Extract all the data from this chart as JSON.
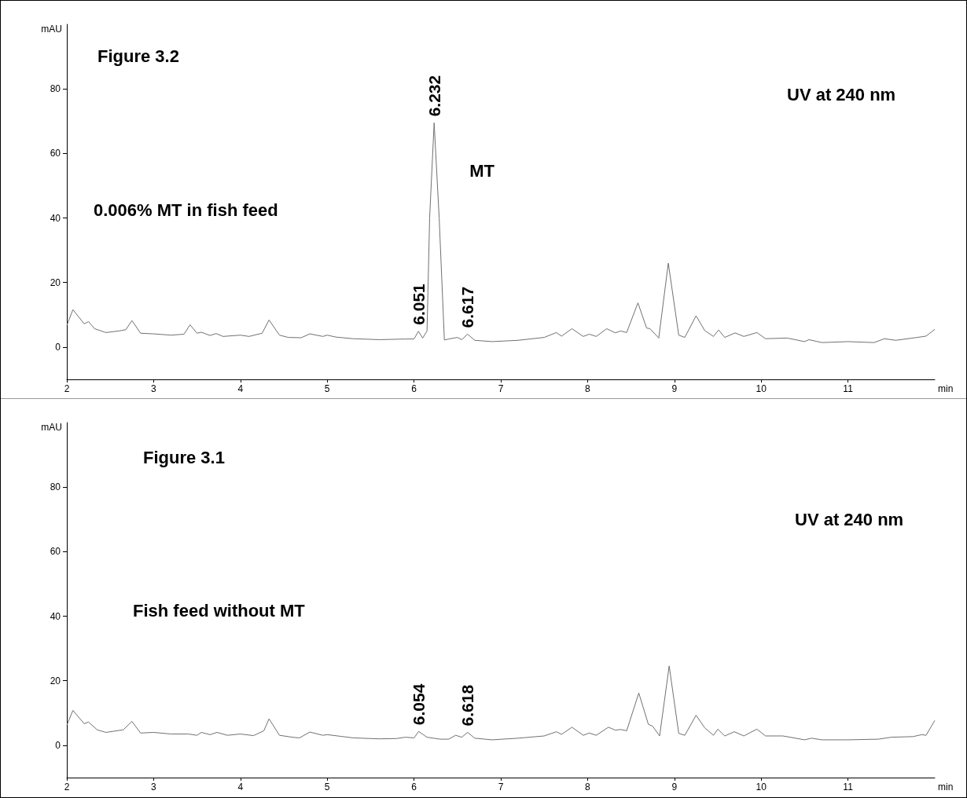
{
  "chart_data": [
    {
      "type": "line",
      "title": "Figure 3.2",
      "xlabel": "min",
      "ylabel": "mAU",
      "color": "#707070",
      "marker": "none",
      "line_style": "solid",
      "x": [
        2.0,
        2.07,
        2.2,
        2.25,
        2.32,
        2.45,
        2.6,
        2.68,
        2.75,
        2.85,
        3.0,
        3.2,
        3.35,
        3.42,
        3.5,
        3.55,
        3.65,
        3.72,
        3.8,
        4.0,
        4.1,
        4.25,
        4.33,
        4.45,
        4.55,
        4.7,
        4.8,
        4.95,
        5.0,
        5.1,
        5.3,
        5.6,
        5.9,
        6.0,
        6.051,
        6.1,
        6.15,
        6.18,
        6.232,
        6.29,
        6.35,
        6.4,
        6.5,
        6.55,
        6.617,
        6.7,
        6.9,
        7.2,
        7.5,
        7.64,
        7.7,
        7.82,
        7.95,
        8.02,
        8.1,
        8.22,
        8.32,
        8.38,
        8.45,
        8.58,
        8.68,
        8.72,
        8.82,
        8.93,
        9.05,
        9.12,
        9.25,
        9.35,
        9.45,
        9.51,
        9.58,
        9.7,
        9.8,
        9.95,
        10.05,
        10.3,
        10.5,
        10.55,
        10.7,
        11.0,
        11.3,
        11.42,
        11.55,
        11.8,
        11.9,
        12.0
      ],
      "values": [
        6.7,
        11.6,
        7.2,
        7.9,
        5.7,
        4.5,
        5,
        5.4,
        8.2,
        4.3,
        4.1,
        3.7,
        4,
        6.9,
        4.3,
        4.6,
        3.6,
        4.2,
        3.3,
        3.7,
        3.3,
        4.3,
        8.4,
        3.7,
        3,
        2.9,
        4.1,
        3.3,
        3.7,
        3.1,
        2.6,
        2.3,
        2.5,
        2.5,
        4.9,
        2.8,
        5,
        40,
        69.5,
        40,
        2.2,
        2.5,
        3,
        2.3,
        4,
        2.1,
        1.7,
        2.1,
        3,
        4.5,
        3.4,
        5.7,
        3.3,
        4,
        3.3,
        5.7,
        4.4,
        5,
        4.5,
        13.7,
        5.9,
        5.7,
        2.8,
        26,
        3.7,
        3,
        9.7,
        5.1,
        3.3,
        5.3,
        3,
        4.4,
        3.3,
        4.5,
        2.6,
        2.8,
        1.7,
        2.3,
        1.4,
        1.7,
        1.4,
        2.6,
        2.1,
        3,
        3.4,
        5.5
      ],
      "xlim": [
        2,
        12
      ],
      "ylim": [
        -10,
        100
      ],
      "xticks": [
        2,
        3,
        4,
        5,
        6,
        7,
        8,
        9,
        10,
        11
      ],
      "yticks": [
        0,
        20,
        40,
        60,
        80
      ],
      "annotations": [
        "0.006% MT in fish feed",
        "UV at 240 nm",
        {
          "text": "MT",
          "x": 6.232,
          "y": 45
        },
        {
          "text": "6.051",
          "x": 6.051,
          "y": 4.9
        },
        {
          "text": "6.232",
          "x": 6.232,
          "y": 69.5
        },
        {
          "text": "6.617",
          "x": 6.617,
          "y": 4
        }
      ]
    },
    {
      "type": "line",
      "title": "Figure 3.1",
      "xlabel": "min",
      "ylabel": "mAU",
      "color": "#707070",
      "marker": "none",
      "line_style": "solid",
      "x": [
        2.0,
        2.07,
        2.2,
        2.25,
        2.35,
        2.45,
        2.65,
        2.75,
        2.85,
        3.0,
        3.2,
        3.4,
        3.5,
        3.55,
        3.65,
        3.73,
        3.85,
        4.0,
        4.15,
        4.27,
        4.33,
        4.45,
        4.6,
        4.68,
        4.8,
        4.95,
        5.0,
        5.15,
        5.3,
        5.6,
        5.8,
        5.9,
        6.0,
        6.054,
        6.15,
        6.3,
        6.4,
        6.48,
        6.55,
        6.618,
        6.7,
        6.9,
        7.2,
        7.5,
        7.64,
        7.7,
        7.82,
        7.95,
        8.02,
        8.1,
        8.24,
        8.32,
        8.38,
        8.45,
        8.59,
        8.7,
        8.75,
        8.83,
        8.94,
        9.05,
        9.12,
        9.25,
        9.35,
        9.45,
        9.5,
        9.58,
        9.69,
        9.8,
        9.95,
        10.05,
        10.25,
        10.5,
        10.58,
        10.7,
        11.0,
        11.35,
        11.5,
        11.75,
        11.85,
        11.9,
        12.0
      ],
      "values": [
        6.2,
        10.8,
        6.7,
        7.2,
        4.8,
        4,
        4.8,
        7.4,
        3.8,
        4,
        3.5,
        3.5,
        3.1,
        4,
        3.3,
        4,
        3.1,
        3.5,
        3,
        4.5,
        8.2,
        3.1,
        2.5,
        2.3,
        4.1,
        3.1,
        3.3,
        2.8,
        2.3,
        2,
        2.1,
        2.5,
        2.3,
        4.3,
        2.5,
        1.9,
        1.9,
        3.1,
        2.5,
        4,
        2.2,
        1.7,
        2.2,
        2.9,
        4.2,
        3.4,
        5.6,
        3.1,
        3.8,
        3.1,
        5.6,
        4.7,
        4.9,
        4.5,
        16.2,
        6.5,
        5.9,
        2.9,
        24.6,
        3.7,
        3.1,
        9.3,
        5.4,
        3.1,
        5,
        2.9,
        4.2,
        2.9,
        5,
        2.9,
        2.9,
        1.7,
        2.2,
        1.7,
        1.7,
        1.9,
        2.5,
        2.7,
        3.3,
        3.1,
        7.7
      ],
      "xlim": [
        2,
        12
      ],
      "ylim": [
        -10,
        100
      ],
      "xticks": [
        2,
        3,
        4,
        5,
        6,
        7,
        8,
        9,
        10,
        11
      ],
      "yticks": [
        0,
        20,
        40,
        60,
        80
      ],
      "annotations": [
        "Fish feed without MT",
        "UV at 240 nm",
        {
          "text": "6.054",
          "x": 6.054,
          "y": 4.3
        },
        {
          "text": "6.618",
          "x": 6.618,
          "y": 4
        }
      ]
    }
  ]
}
